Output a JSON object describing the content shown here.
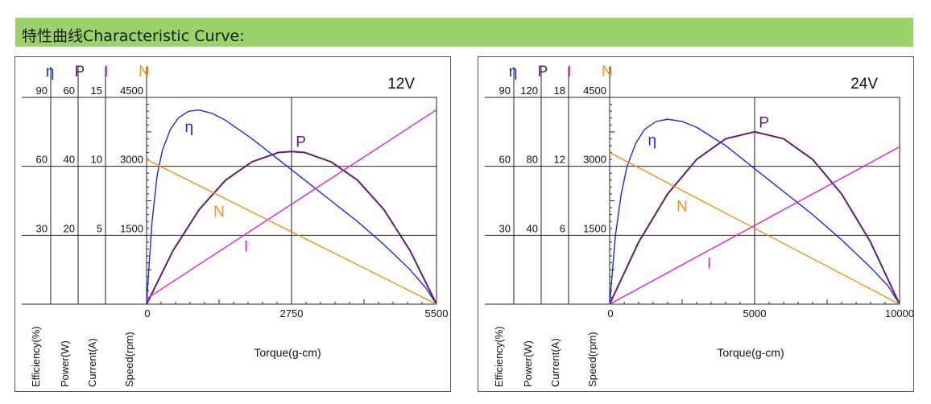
{
  "header": {
    "title": "特性曲线Characteristic Curve:"
  },
  "colors": {
    "efficiency": "#1a2bd8",
    "power": "#5e1f6e",
    "current": "#e81ed8",
    "speed": "#f0921c",
    "header_bg": "#99d36a"
  },
  "legend_symbols": {
    "efficiency": "η",
    "power": "P",
    "current": "I",
    "speed": "N"
  },
  "axis_titles": {
    "efficiency": "Efficiency(%)",
    "power": "Power(W)",
    "current": "Current(A)",
    "speed": "Speed(rpm)",
    "x": "Torque(g-cm)"
  },
  "chart_data": [
    {
      "type": "line",
      "title": "12V",
      "xlabel": "Torque(g-cm)",
      "x_ticks": [
        "0",
        "2750",
        "5500"
      ],
      "xlim": [
        0,
        5500
      ],
      "axes": {
        "efficiency": {
          "ticks": [
            "90",
            "60",
            "30"
          ],
          "max": 90
        },
        "power": {
          "ticks": [
            "60",
            "40",
            "20"
          ],
          "max": 60
        },
        "current": {
          "ticks": [
            "15",
            "10",
            "5"
          ],
          "max": 15
        },
        "speed": {
          "ticks": [
            "4500",
            "3000",
            "1500"
          ],
          "max": 4500
        }
      },
      "curve_labels": {
        "efficiency": "η",
        "power": "P",
        "current": "I",
        "speed": "N"
      },
      "series": [
        {
          "name": "η",
          "axis": "efficiency",
          "x": [
            0,
            100,
            200,
            300,
            450,
            600,
            800,
            1000,
            1250,
            1500,
            2000,
            2500,
            3000,
            3500,
            4000,
            4500,
            5000,
            5300,
            5500
          ],
          "y": [
            0,
            35,
            56,
            67,
            76,
            81,
            84,
            84.5,
            83,
            80,
            72,
            63,
            54,
            45,
            36,
            26,
            15,
            7,
            0
          ]
        },
        {
          "name": "P",
          "axis": "power",
          "x": [
            0,
            500,
            1000,
            1500,
            2000,
            2500,
            2750,
            3000,
            3500,
            4000,
            4500,
            5000,
            5500
          ],
          "y": [
            0,
            15.5,
            27.5,
            36,
            41.3,
            44,
            44.3,
            44,
            41.3,
            36,
            27.5,
            15.5,
            0
          ]
        },
        {
          "name": "I",
          "axis": "current",
          "x": [
            0,
            5500
          ],
          "y": [
            0.4,
            14.1
          ]
        },
        {
          "name": "N",
          "axis": "speed",
          "x": [
            0,
            5500
          ],
          "y": [
            3150,
            0
          ]
        }
      ]
    },
    {
      "type": "line",
      "title": "24V",
      "xlabel": "Torque(g-cm)",
      "x_ticks": [
        "0",
        "5000",
        "10000"
      ],
      "xlim": [
        0,
        10000
      ],
      "axes": {
        "efficiency": {
          "ticks": [
            "90",
            "60",
            "30"
          ],
          "max": 90
        },
        "power": {
          "ticks": [
            "120",
            "80",
            "40"
          ],
          "max": 120
        },
        "current": {
          "ticks": [
            "18",
            "12",
            "6"
          ],
          "max": 18
        },
        "speed": {
          "ticks": [
            "4500",
            "3000",
            "1500"
          ],
          "max": 4500
        }
      },
      "curve_labels": {
        "efficiency": "η",
        "power": "P",
        "current": "I",
        "speed": "N"
      },
      "series": [
        {
          "name": "η",
          "axis": "efficiency",
          "x": [
            0,
            200,
            400,
            600,
            900,
            1200,
            1600,
            2000,
            2500,
            3000,
            4000,
            5000,
            6000,
            7000,
            8000,
            9000,
            9600,
            10000
          ],
          "y": [
            0,
            30,
            48,
            60,
            70,
            76,
            79.5,
            80.5,
            79.5,
            77,
            69,
            59,
            49,
            39,
            28,
            16,
            8,
            0
          ]
        },
        {
          "name": "P",
          "axis": "power",
          "x": [
            0,
            1000,
            2000,
            3000,
            4000,
            5000,
            6000,
            7000,
            8000,
            9000,
            10000
          ],
          "y": [
            0,
            36,
            64,
            84,
            96,
            100,
            96,
            84,
            64,
            36,
            0
          ]
        },
        {
          "name": "I",
          "axis": "current",
          "x": [
            0,
            10000
          ],
          "y": [
            0,
            13.7
          ]
        },
        {
          "name": "N",
          "axis": "speed",
          "x": [
            0,
            10000
          ],
          "y": [
            3300,
            0
          ]
        }
      ]
    }
  ]
}
